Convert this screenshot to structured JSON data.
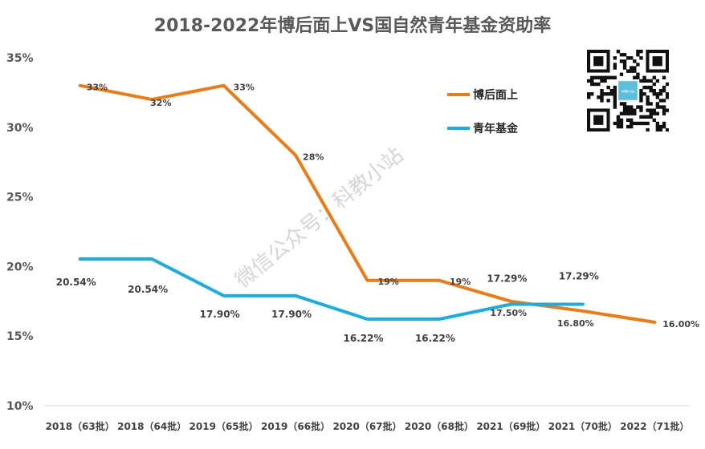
{
  "chart_data": {
    "type": "line",
    "title": "2018-2022年博后面上VS国自然青年基金资助率",
    "categories": [
      "2018（63批）",
      "2018（64批）",
      "2019（65批）",
      "2019（66批）",
      "2020（67批）",
      "2020（68批）",
      "2021（69批）",
      "2021（70批）",
      "2022（71批）"
    ],
    "ylim": [
      10,
      35
    ],
    "yticks": [
      "10%",
      "15%",
      "20%",
      "25%",
      "30%",
      "35%"
    ],
    "xlabel": "",
    "ylabel": "",
    "grid": false,
    "legend_position": "top-right",
    "series": [
      {
        "name": "博后面上",
        "color": "#F07A10",
        "values": [
          33,
          32,
          33,
          28,
          19,
          19,
          17.5,
          16.8,
          16.0
        ],
        "labels": [
          "33%",
          "32%",
          "33%",
          "28%",
          "19%",
          "19%",
          "17.50%",
          "16.80%",
          "16.00%"
        ]
      },
      {
        "name": "青年基金",
        "color": "#17AEE3",
        "values": [
          20.54,
          20.54,
          17.9,
          17.9,
          16.22,
          16.22,
          17.29,
          17.29,
          null
        ],
        "labels": [
          "20.54%",
          "20.54%",
          "17.90%",
          "17.90%",
          "16.22%",
          "16.22%",
          "17.29%",
          "17.29%",
          ""
        ]
      }
    ]
  },
  "watermark": "微信公众号：科教小站",
  "qr_center_text": "科教小站"
}
